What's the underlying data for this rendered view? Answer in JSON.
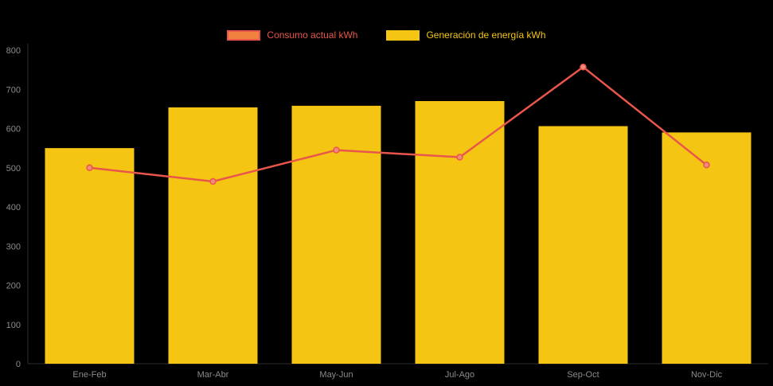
{
  "chart_data": {
    "type": "bar",
    "categories": [
      "Ene-Feb",
      "Mar-Abr",
      "May-Jun",
      "Jul-Ago",
      "Sep-Oct",
      "Nov-Dic"
    ],
    "series": [
      {
        "name": "Consumo actual kWh",
        "type": "line",
        "color": "#e8564b",
        "swatch_fill": "#f0813f",
        "point_fill": "#ef8a7c",
        "values": [
          500,
          465,
          545,
          527,
          757,
          507
        ]
      },
      {
        "name": "Generación de energía kWh",
        "type": "bar",
        "color": "#f5c513",
        "values": [
          550,
          654,
          658,
          670,
          606,
          590
        ]
      }
    ],
    "ylim": [
      0,
      800
    ],
    "yticks": [
      0,
      100,
      200,
      300,
      400,
      500,
      600,
      700,
      800
    ],
    "grid": false,
    "legend_position": "top",
    "background": "#000000",
    "axis_text_color": "#8b8b8b"
  }
}
